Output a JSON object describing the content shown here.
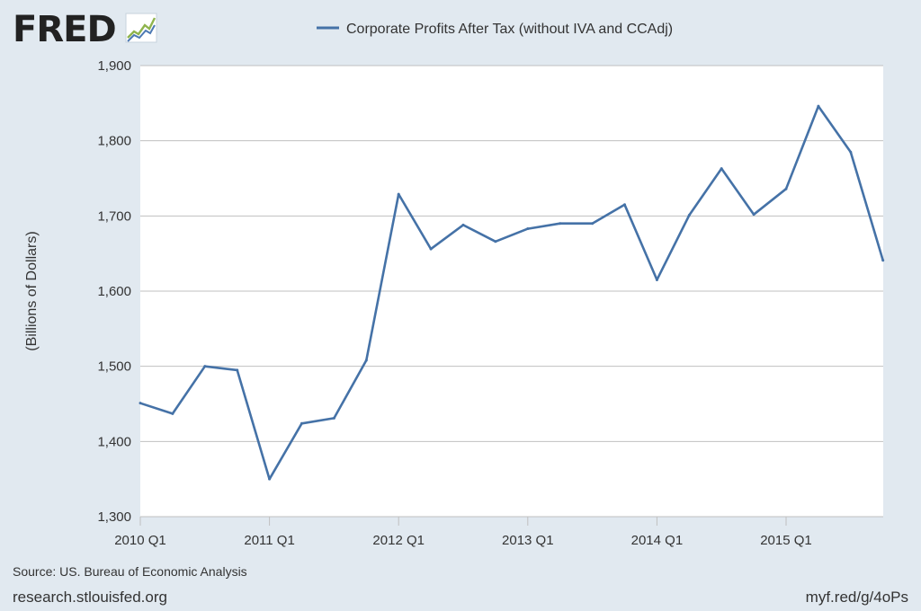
{
  "brand": {
    "logo_text": "FRED"
  },
  "chart_data": {
    "type": "line",
    "series": [
      {
        "name": "Corporate Profits After Tax (without IVA and CCAdj)",
        "color": "#4572a7",
        "points": [
          {
            "x": "2010 Q1",
            "y": 1451
          },
          {
            "x": "2010 Q2",
            "y": 1437
          },
          {
            "x": "2010 Q3",
            "y": 1500
          },
          {
            "x": "2010 Q4",
            "y": 1495
          },
          {
            "x": "2011 Q1",
            "y": 1350
          },
          {
            "x": "2011 Q2",
            "y": 1424
          },
          {
            "x": "2011 Q3",
            "y": 1431
          },
          {
            "x": "2011 Q4",
            "y": 1508
          },
          {
            "x": "2012 Q1",
            "y": 1729
          },
          {
            "x": "2012 Q2",
            "y": 1656
          },
          {
            "x": "2012 Q3",
            "y": 1688
          },
          {
            "x": "2012 Q4",
            "y": 1666
          },
          {
            "x": "2013 Q1",
            "y": 1683
          },
          {
            "x": "2013 Q2",
            "y": 1690
          },
          {
            "x": "2013 Q3",
            "y": 1690
          },
          {
            "x": "2013 Q4",
            "y": 1715
          },
          {
            "x": "2014 Q1",
            "y": 1615
          },
          {
            "x": "2014 Q2",
            "y": 1701
          },
          {
            "x": "2014 Q3",
            "y": 1763
          },
          {
            "x": "2014 Q4",
            "y": 1702
          },
          {
            "x": "2015 Q1",
            "y": 1736
          },
          {
            "x": "2015 Q2",
            "y": 1846
          },
          {
            "x": "2015 Q3",
            "y": 1785
          },
          {
            "x": "2015 Q4",
            "y": 1641
          }
        ]
      }
    ],
    "x_tick_labels": [
      "2010 Q1",
      "2011 Q1",
      "2012 Q1",
      "2013 Q1",
      "2014 Q1",
      "2015 Q1"
    ],
    "y_tick_labels": [
      "1,300",
      "1,400",
      "1,500",
      "1,600",
      "1,700",
      "1,800",
      "1,900"
    ],
    "y_ticks": [
      1300,
      1400,
      1500,
      1600,
      1700,
      1800,
      1900
    ],
    "ylim": [
      1300,
      1900
    ],
    "ylabel": "(Billions of Dollars)",
    "xlabel": "",
    "grid": "horizontal",
    "legend_position": "top-center"
  },
  "footer": {
    "source": "Source: US. Bureau of Economic Analysis",
    "site": "research.stlouisfed.org",
    "short_url": "myf.red/g/4oPs"
  }
}
